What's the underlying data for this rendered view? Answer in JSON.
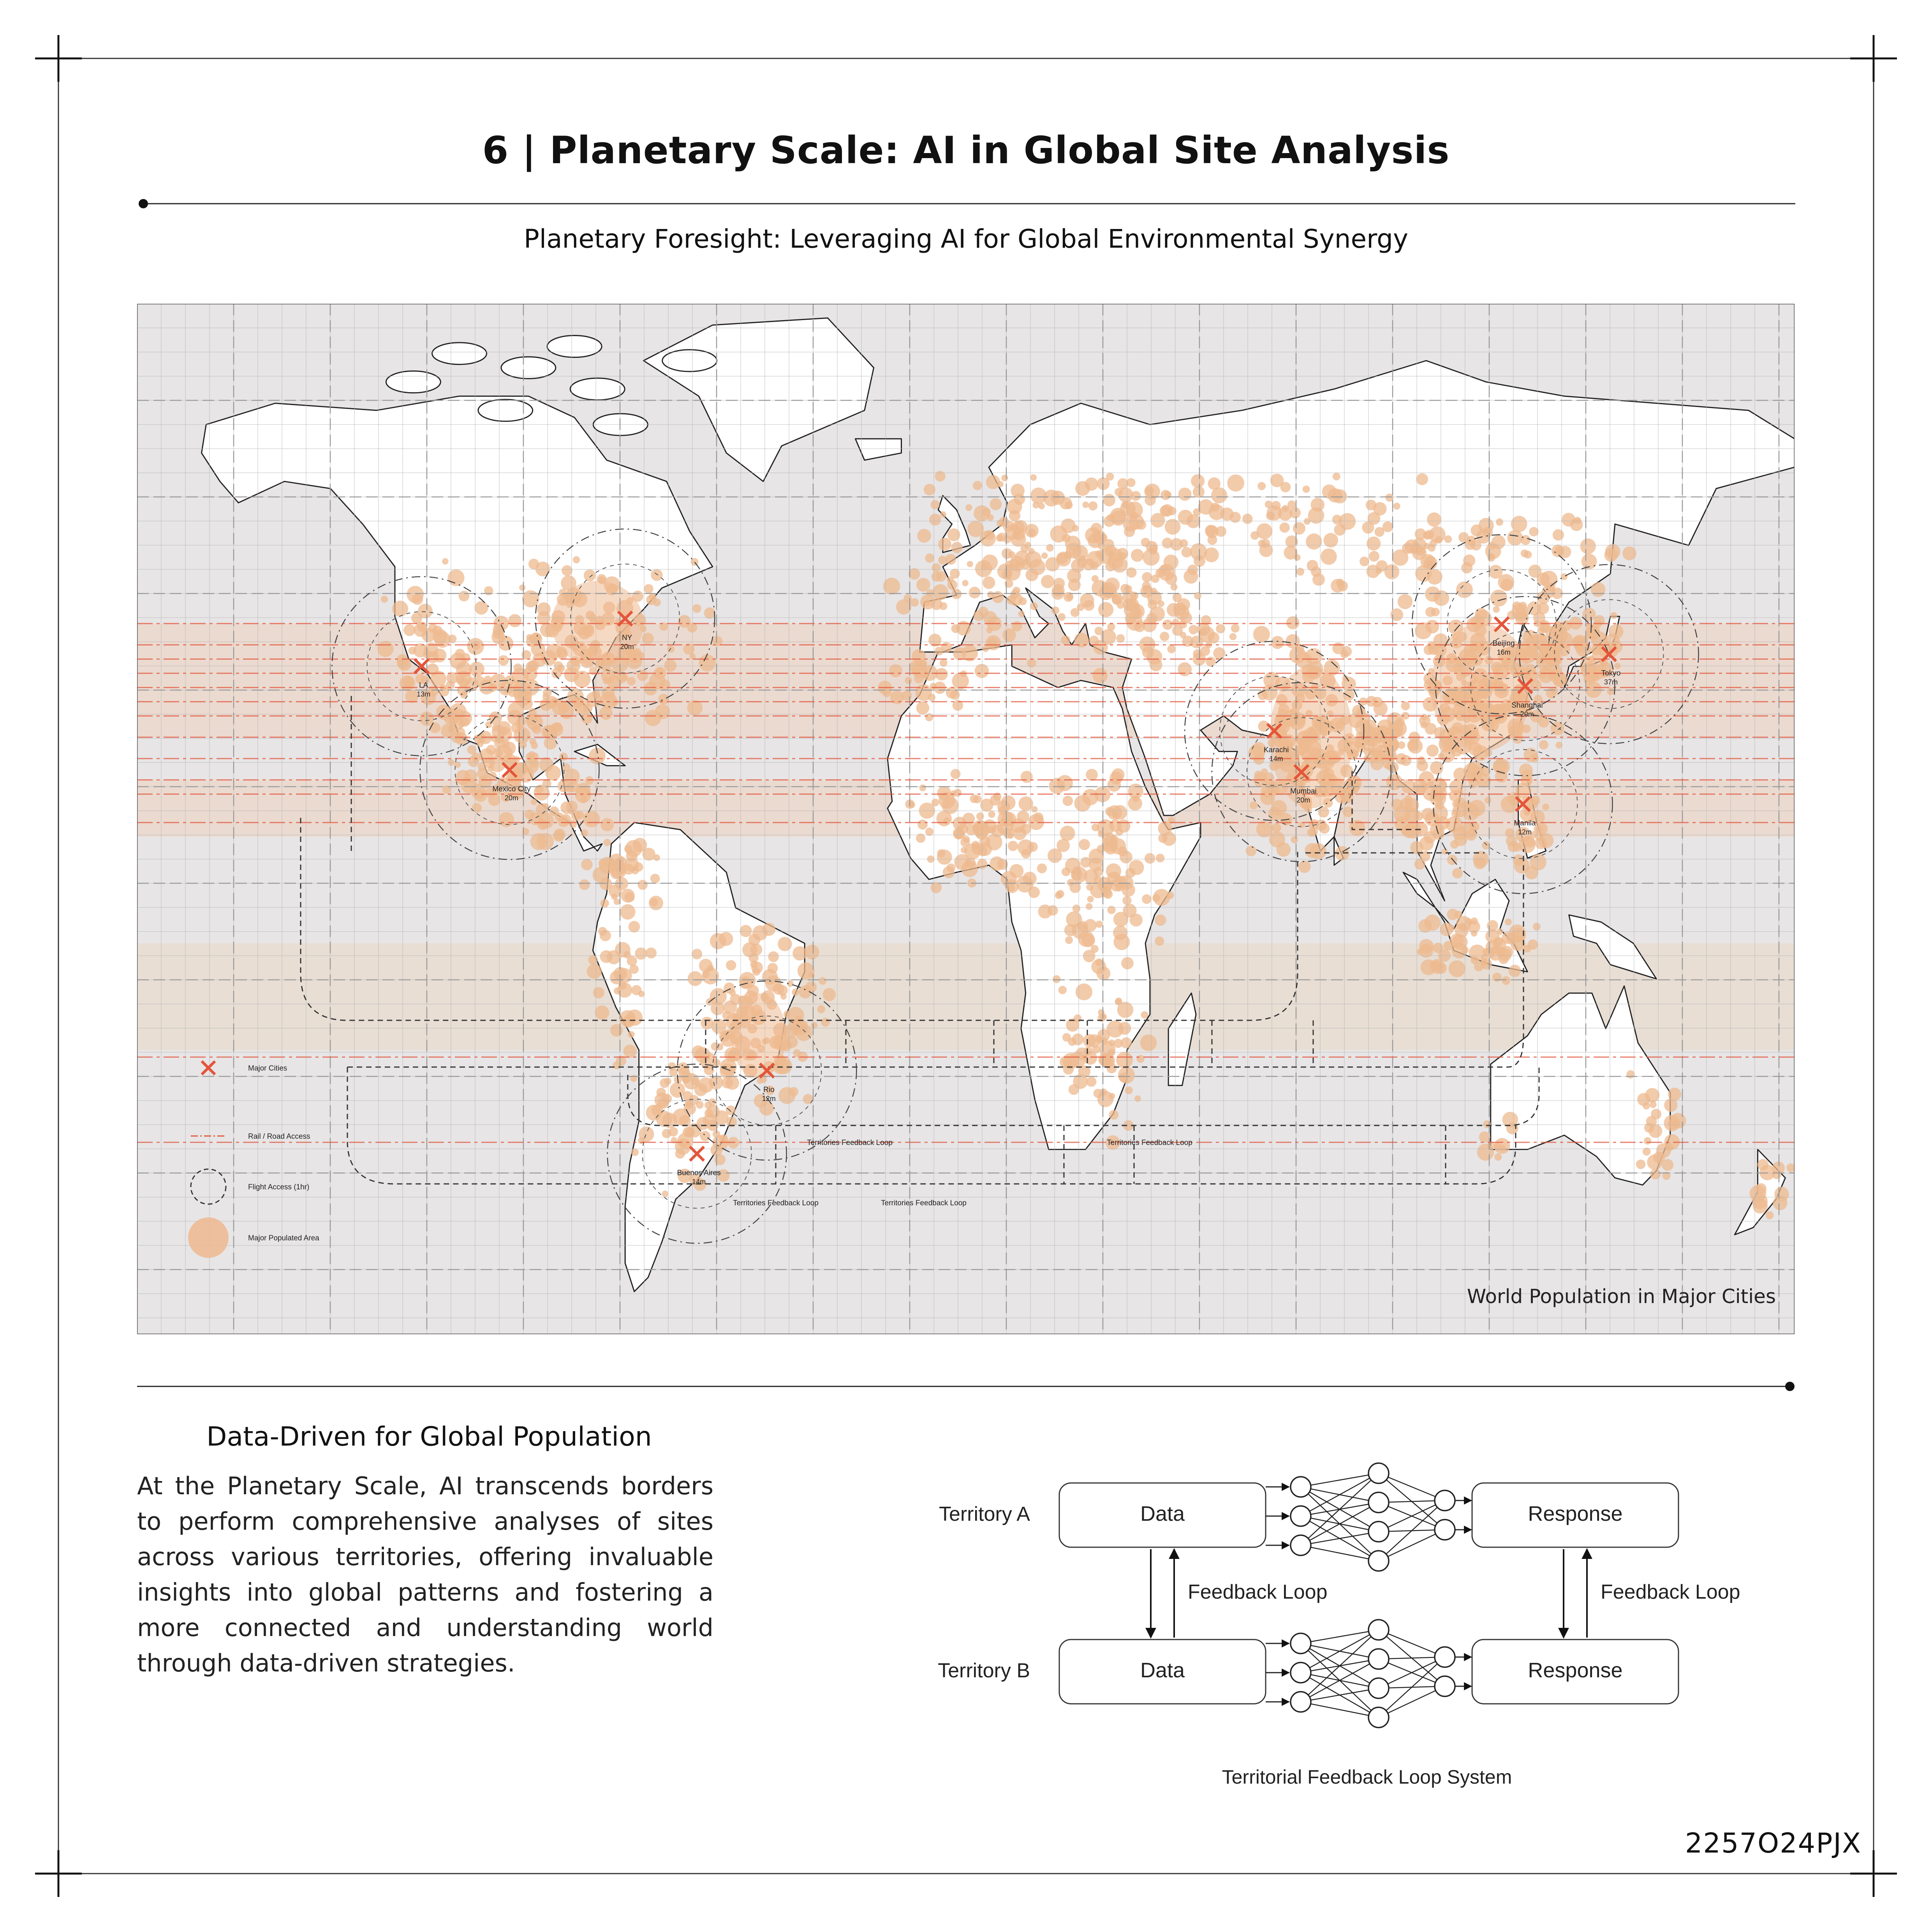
{
  "page": {
    "title": "6 | Planetary Scale: AI in Global Site Analysis",
    "subtitle": "Planetary Foresight: Leveraging AI for Global Environmental Synergy",
    "sheet_code": "2257O24PJX"
  },
  "map": {
    "caption": "World Population in Major Cities",
    "colors": {
      "land": "#ffffff",
      "ocean": "#e7e5e6",
      "population": "#eeb98f",
      "city_marker": "#e4553a",
      "band": "#efd2bd",
      "grid": "#b5b5b5"
    },
    "cities": [
      {
        "name": "NY",
        "population": "20m",
        "lon": -74.0,
        "lat": 40.7
      },
      {
        "name": "Mexico City",
        "population": "20m",
        "lon": -99.1,
        "lat": 19.4
      },
      {
        "name": "LA",
        "population": "13m",
        "lon": -118.2,
        "lat": 34.0
      },
      {
        "name": "Rio",
        "population": "12m",
        "lon": -43.2,
        "lat": -22.9
      },
      {
        "name": "Buenos Aires",
        "population": "14m",
        "lon": -58.4,
        "lat": -34.6
      },
      {
        "name": "Karachi",
        "population": "14m",
        "lon": 67.0,
        "lat": 24.9
      },
      {
        "name": "Mumbai",
        "population": "20m",
        "lon": 72.9,
        "lat": 19.1
      },
      {
        "name": "Beijing",
        "population": "16m",
        "lon": 116.4,
        "lat": 39.9
      },
      {
        "name": "Shanghai",
        "population": "20m",
        "lon": 121.5,
        "lat": 31.2
      },
      {
        "name": "Tokyo",
        "population": "37m",
        "lon": 139.7,
        "lat": 35.7
      },
      {
        "name": "Manila",
        "population": "12m",
        "lon": 121.0,
        "lat": 14.6
      }
    ],
    "legend": [
      {
        "key": "city",
        "label": "Major Cities"
      },
      {
        "key": "rail",
        "label": "Rail / Road Access"
      },
      {
        "key": "flight",
        "label": "Flight Access (1hr)"
      },
      {
        "key": "population",
        "label": "Major Populated Area"
      }
    ],
    "feedback_labels": [
      "Territories Feedback Loop",
      "Territories Feedback Loop",
      "Territories Feedback Loop",
      "Territories Feedback Loop"
    ]
  },
  "text_block": {
    "heading": "Data-Driven for Global Population",
    "body": "At the Planetary Scale, AI transcends borders to perform comprehensive analyses of sites across various territories, offering invaluable insights into global patterns and fostering a more connected and understanding world through data-driven strategies."
  },
  "diagram": {
    "territory_a": "Territory A",
    "territory_b": "Territory B",
    "data_label": "Data",
    "response_label": "Response",
    "feedback_label": "Feedback Loop",
    "caption": "Territorial Feedback Loop System"
  }
}
